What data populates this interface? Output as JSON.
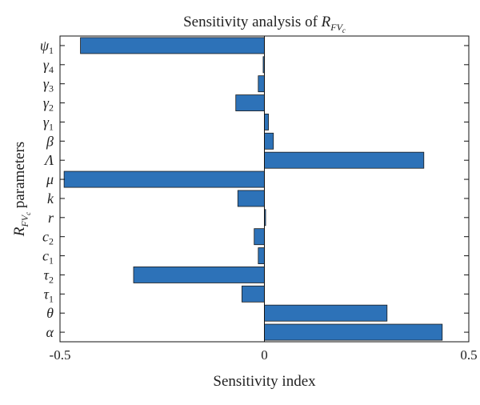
{
  "chart_data": {
    "type": "bar",
    "orientation": "horizontal",
    "title": {
      "text": "Sensitivity analysis of ",
      "symbol": "R",
      "subscript": "FV",
      "subsubscript": "c"
    },
    "xlabel": "Sensitivity index",
    "ylabel": {
      "symbol": "R",
      "subscript": "FV",
      "subsubscript": "c",
      "text": " parameters"
    },
    "xlim": [
      -0.5,
      0.5
    ],
    "xticks": [
      -0.5,
      0,
      0.5
    ],
    "xtick_labels": [
      "-0.5",
      "0",
      "0.5"
    ],
    "categories": [
      {
        "base": "ψ",
        "sub": "1"
      },
      {
        "base": "γ",
        "sub": "4"
      },
      {
        "base": "γ",
        "sub": "3"
      },
      {
        "base": "γ",
        "sub": "2"
      },
      {
        "base": "γ",
        "sub": "1"
      },
      {
        "base": "β",
        "sub": ""
      },
      {
        "base": "Λ",
        "sub": ""
      },
      {
        "base": "μ",
        "sub": ""
      },
      {
        "base": "k",
        "sub": ""
      },
      {
        "base": "r",
        "sub": ""
      },
      {
        "base": "c",
        "sub": "2"
      },
      {
        "base": "c",
        "sub": "1"
      },
      {
        "base": "τ",
        "sub": "2"
      },
      {
        "base": "τ",
        "sub": "1"
      },
      {
        "base": "θ",
        "sub": ""
      },
      {
        "base": "α",
        "sub": ""
      }
    ],
    "values": [
      -0.45,
      -0.003,
      -0.015,
      -0.07,
      0.01,
      0.022,
      0.39,
      -0.49,
      -0.065,
      0.003,
      -0.025,
      -0.015,
      -0.32,
      -0.055,
      0.3,
      0.435
    ],
    "bar_color": "#2d72b8",
    "bar_edge_color": "#1a1a1a",
    "zero_line": true,
    "grid": false,
    "legend": "none"
  }
}
